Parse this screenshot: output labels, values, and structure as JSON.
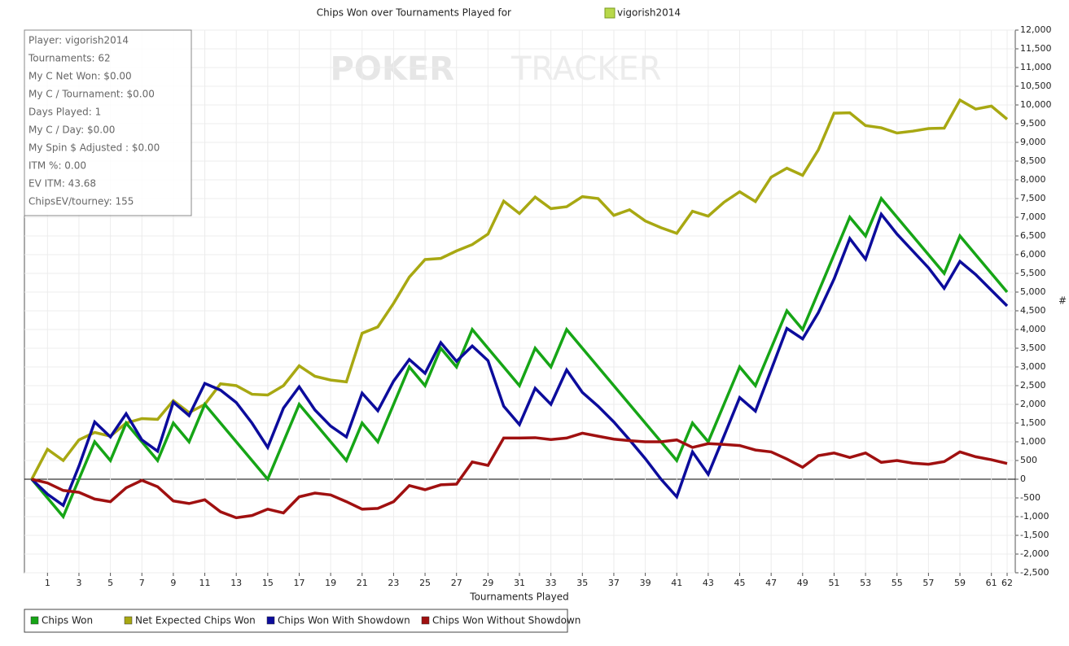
{
  "chart_data": {
    "type": "line",
    "title": "Chips Won over Tournaments Played for",
    "player": "vigorish2014",
    "watermark": [
      "POKER",
      "TRACKER"
    ],
    "xlabel": "Tournaments Played",
    "ylabel": "#",
    "stats": [
      "Player: vigorish2014",
      "Tournaments: 62",
      "My C Net Won: $0.00",
      "My C / Tournament: $0.00",
      "Days Played: 1",
      "My C / Day: $0.00",
      "My Spin $ Adjusted : $0.00",
      "ITM %: 0.00",
      "EV ITM: 43.68",
      "ChipsEV/tourney: 155"
    ],
    "grid": true,
    "x": [
      0,
      1,
      2,
      3,
      4,
      5,
      6,
      7,
      8,
      9,
      10,
      11,
      12,
      13,
      14,
      15,
      16,
      17,
      18,
      19,
      20,
      21,
      22,
      23,
      24,
      25,
      26,
      27,
      28,
      29,
      30,
      31,
      32,
      33,
      34,
      35,
      36,
      37,
      38,
      39,
      40,
      41,
      42,
      43,
      44,
      45,
      46,
      47,
      48,
      49,
      50,
      51,
      52,
      53,
      54,
      55,
      56,
      57,
      58,
      59,
      60,
      61,
      62
    ],
    "xlim": [
      0,
      62
    ],
    "xticks": [
      1,
      3,
      5,
      7,
      9,
      11,
      13,
      15,
      17,
      19,
      21,
      23,
      25,
      27,
      29,
      31,
      33,
      35,
      37,
      39,
      41,
      43,
      45,
      47,
      49,
      51,
      53,
      55,
      57,
      59,
      61,
      62
    ],
    "ylim": [
      -2500,
      12000
    ],
    "yticks": [
      {
        "value": -2500,
        "label": "-2,500"
      },
      {
        "value": -2000,
        "label": "-2,000"
      },
      {
        "value": -1500,
        "label": "-1,500"
      },
      {
        "value": -1000,
        "label": "-1,000"
      },
      -500,
      0,
      500,
      {
        "value": 1000,
        "label": "1,000"
      },
      {
        "value": 1500,
        "label": "1,500"
      },
      {
        "value": 2000,
        "label": "2,000"
      },
      {
        "value": 2500,
        "label": "2,500"
      },
      {
        "value": 3000,
        "label": "3,000"
      },
      {
        "value": 3500,
        "label": "3,500"
      },
      {
        "value": 4000,
        "label": "4,000"
      },
      {
        "value": 4500,
        "label": "4,500"
      },
      {
        "value": 5000,
        "label": "5,000"
      },
      {
        "value": 5500,
        "label": "5,500"
      },
      {
        "value": 6000,
        "label": "6,000"
      },
      {
        "value": 6500,
        "label": "6,500"
      },
      {
        "value": 7000,
        "label": "7,000"
      },
      {
        "value": 7500,
        "label": "7,500"
      },
      {
        "value": 8000,
        "label": "8,000"
      },
      {
        "value": 8500,
        "label": "8,500"
      },
      {
        "value": 9000,
        "label": "9,000"
      },
      {
        "value": 9500,
        "label": "9,500"
      },
      {
        "value": 10000,
        "label": "10,000"
      },
      {
        "value": 10500,
        "label": "10,500"
      },
      {
        "value": 11000,
        "label": "11,000"
      },
      {
        "value": 11500,
        "label": "11,500"
      },
      {
        "value": 12000,
        "label": "12,000"
      }
    ],
    "series": [
      {
        "name": "Chips Won",
        "color": "#16a516",
        "values": [
          0,
          -500,
          -1000,
          0,
          1000,
          500,
          1500,
          1000,
          500,
          1500,
          1000,
          2000,
          1500,
          1000,
          500,
          0,
          1000,
          2000,
          1500,
          1000,
          500,
          1500,
          1000,
          2000,
          3000,
          2500,
          3500,
          3000,
          4000,
          3500,
          3000,
          2500,
          3500,
          3000,
          4000,
          3500,
          3000,
          2500,
          2000,
          1500,
          1000,
          500,
          1500,
          1000,
          2000,
          3000,
          2500,
          3500,
          4500,
          4000,
          5000,
          6000,
          7000,
          6500,
          7500,
          7000,
          6500,
          6000,
          5500,
          6500,
          6000,
          5500,
          5000
        ]
      },
      {
        "name": "Net Expected Chips Won",
        "color": "#a8a812",
        "values": [
          0,
          800,
          500,
          1050,
          1250,
          1150,
          1500,
          1620,
          1600,
          2100,
          1780,
          2000,
          2550,
          2500,
          2270,
          2250,
          2500,
          3030,
          2750,
          2650,
          2600,
          3900,
          4070,
          4700,
          5400,
          5870,
          5900,
          6100,
          6270,
          6550,
          7430,
          7100,
          7540,
          7230,
          7280,
          7550,
          7500,
          7050,
          7200,
          6900,
          6720,
          6570,
          7160,
          7030,
          7400,
          7680,
          7420,
          8070,
          8310,
          8120,
          8800,
          9780,
          9790,
          9450,
          9390,
          9250,
          9300,
          9370,
          9380,
          10130,
          9890,
          9970,
          9620
        ]
      },
      {
        "name": "Chips Won With Showdown",
        "color": "#0c0c9c",
        "values": [
          0,
          -400,
          -700,
          350,
          1530,
          1130,
          1750,
          1050,
          750,
          2060,
          1700,
          2560,
          2380,
          2050,
          1500,
          850,
          1900,
          2470,
          1850,
          1420,
          1130,
          2300,
          1830,
          2620,
          3200,
          2830,
          3650,
          3150,
          3560,
          3170,
          1950,
          1460,
          2430,
          2000,
          2920,
          2320,
          1950,
          1530,
          1050,
          550,
          0,
          -470,
          730,
          130,
          1150,
          2180,
          1820,
          2920,
          4030,
          3750,
          4450,
          5350,
          6430,
          5880,
          7080,
          6550,
          6100,
          5650,
          5100,
          5820,
          5470,
          5050,
          4630
        ]
      },
      {
        "name": "Chips Won Without Showdown",
        "color": "#a01010",
        "values": [
          0,
          -100,
          -300,
          -350,
          -530,
          -600,
          -230,
          -30,
          -200,
          -580,
          -650,
          -550,
          -870,
          -1030,
          -970,
          -800,
          -900,
          -470,
          -370,
          -420,
          -600,
          -800,
          -780,
          -600,
          -170,
          -280,
          -150,
          -130,
          460,
          370,
          1100,
          1100,
          1110,
          1060,
          1100,
          1230,
          1150,
          1070,
          1030,
          1000,
          1000,
          1050,
          850,
          950,
          930,
          900,
          780,
          730,
          540,
          320,
          630,
          700,
          580,
          700,
          450,
          500,
          430,
          400,
          470,
          730,
          600,
          520,
          420
        ]
      }
    ]
  }
}
